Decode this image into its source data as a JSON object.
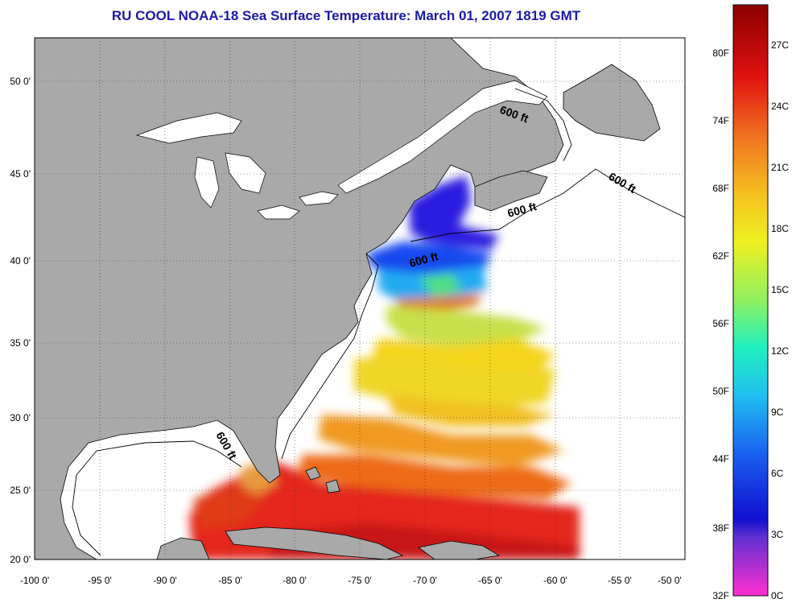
{
  "title": "RU COOL  NOAA-18  Sea Surface Temperature:  March 01, 2007 1819 GMT",
  "axes": {
    "x_ticks": [
      "-100 0'",
      "-95 0'",
      "-90 0'",
      "-85 0'",
      "-80 0'",
      "-75 0'",
      "-70 0'",
      "-65 0'",
      "-60 0'",
      "-55 0'",
      "-50 0'"
    ],
    "y_ticks": [
      "50 0'",
      "45 0'",
      "40 0'",
      "35 0'",
      "30 0'",
      "25 0'",
      "20 0'"
    ]
  },
  "contour_labels": [
    "600 ft",
    "600 ft",
    "600 ft",
    "600 ft",
    "600 ft"
  ],
  "colorbar": {
    "fahrenheit": [
      "80F",
      "74F",
      "68F",
      "62F",
      "56F",
      "50F",
      "44F",
      "38F",
      "32F"
    ],
    "celsius": [
      "27C",
      "24C",
      "21C",
      "18C",
      "15C",
      "12C",
      "9C",
      "6C",
      "3C",
      "0C"
    ]
  },
  "colors": {
    "land": "#a9a9a9",
    "water_nodata": "#ffffff",
    "title": "#1a1aa8"
  }
}
